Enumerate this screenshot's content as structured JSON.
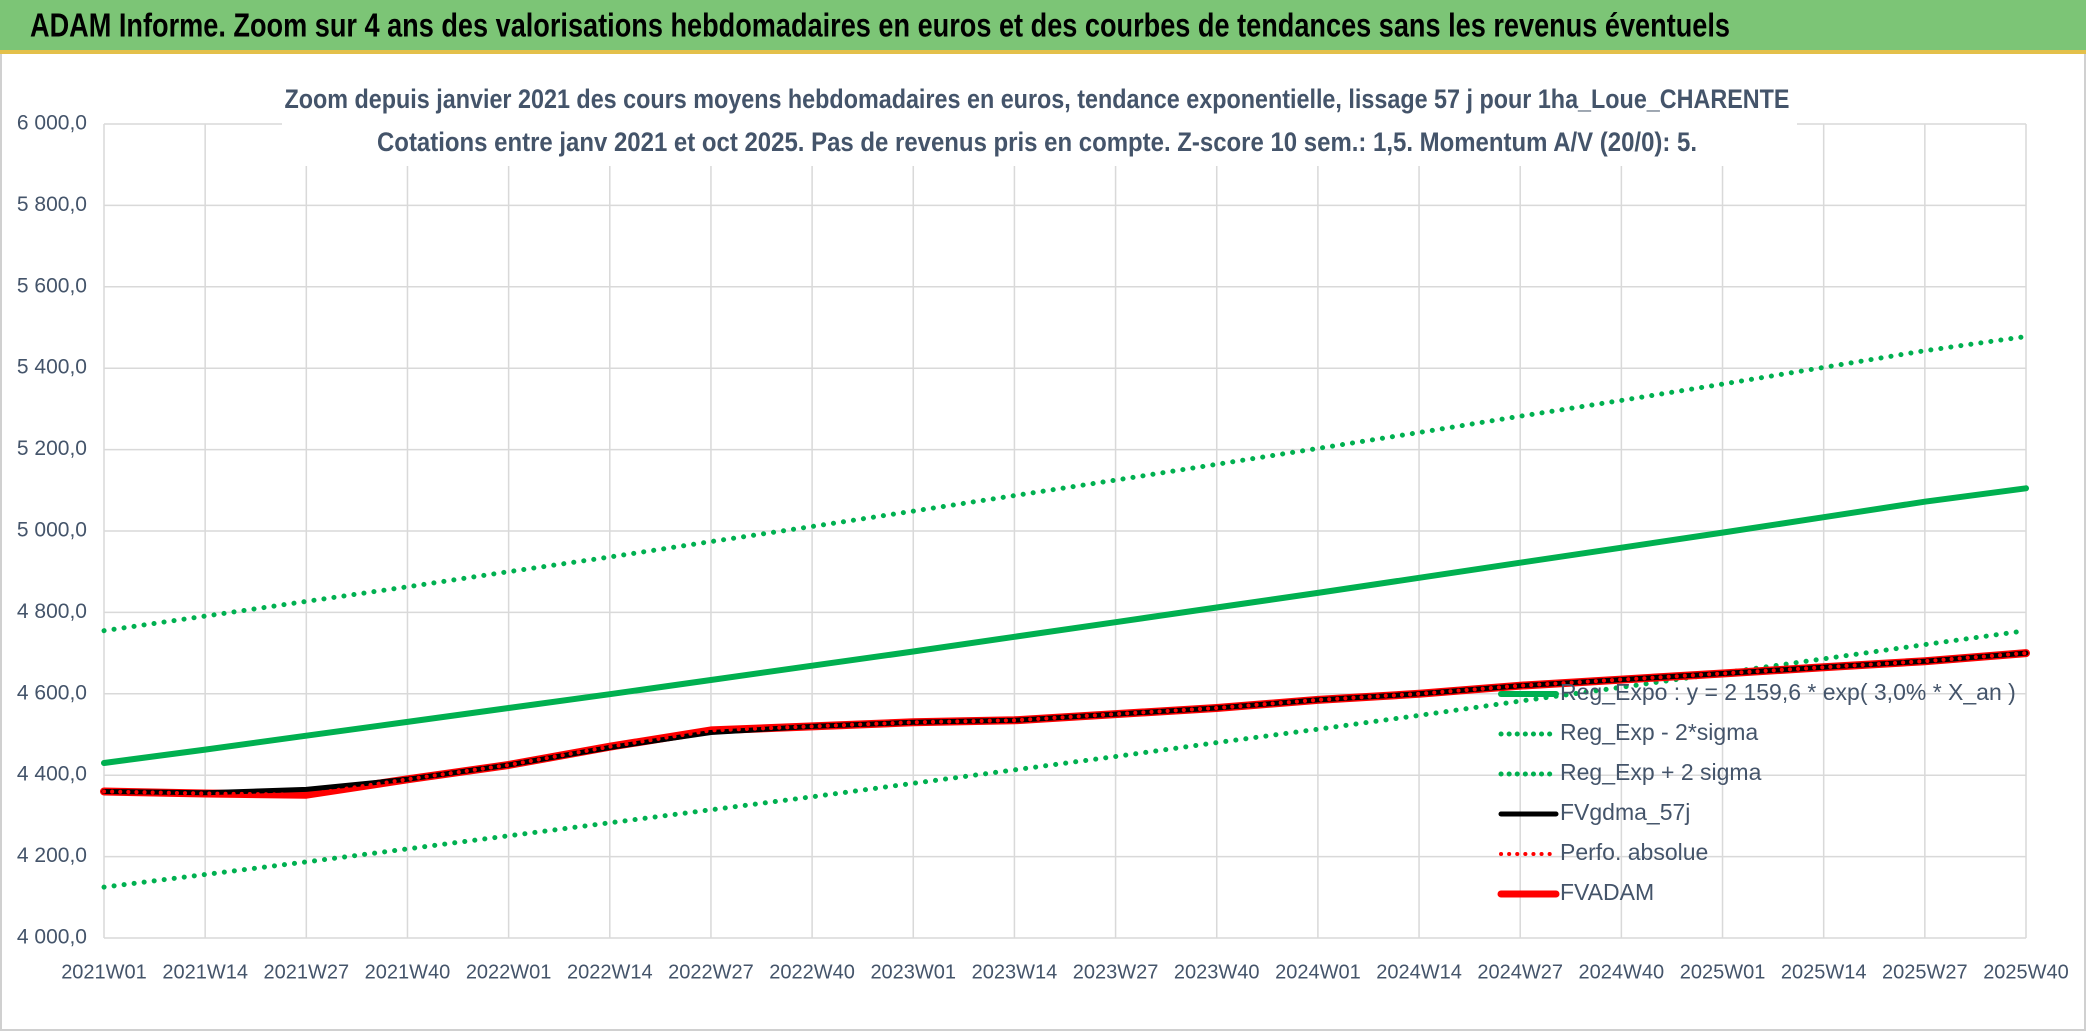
{
  "header": {
    "title": "ADAM Informe. Zoom sur 4 ans des valorisations hebdomadaires en euros et des courbes de tendances sans les revenus éventuels"
  },
  "chart_data": {
    "type": "line",
    "title": "Zoom depuis janvier 2021 des cours moyens hebdomadaires en euros, tendance exponentielle, lissage 57 j pour 1ha_Loue_CHARENTE",
    "subtitle": "Cotations entre janv 2021 et oct 2025. Pas de revenus pris en compte. Z-score 10 sem.: 1,5. Momentum A/V (20/0): 5.",
    "categories": [
      "2021W01",
      "2021W14",
      "2021W27",
      "2021W40",
      "2022W01",
      "2022W14",
      "2022W27",
      "2022W40",
      "2023W01",
      "2023W14",
      "2023W27",
      "2023W40",
      "2024W01",
      "2024W14",
      "2024W27",
      "2024W40",
      "2025W01",
      "2025W14",
      "2025W27",
      "2025W40"
    ],
    "ylim": [
      4000,
      6000
    ],
    "yticks": [
      {
        "value": 4000,
        "label": "4 000,0"
      },
      {
        "value": 4200,
        "label": "4 200,0"
      },
      {
        "value": 4400,
        "label": "4 400,0"
      },
      {
        "value": 4600,
        "label": "4 600,0"
      },
      {
        "value": 4800,
        "label": "4 800,0"
      },
      {
        "value": 5000,
        "label": "5 000,0"
      },
      {
        "value": 5200,
        "label": "5 200,0"
      },
      {
        "value": 5400,
        "label": "5 400,0"
      },
      {
        "value": 5600,
        "label": "5 600,0"
      },
      {
        "value": 5800,
        "label": "5 800,0"
      },
      {
        "value": 6000,
        "label": "6 000,0"
      }
    ],
    "grid": true,
    "series": [
      {
        "name": "Reg_Expo : y = 2 159,6 * exp( 3,0% *  X_an )",
        "color": "#00b050",
        "style": "solid",
        "width": 6,
        "values": [
          4430,
          4463,
          4497,
          4531,
          4565,
          4599,
          4634,
          4669,
          4704,
          4740,
          4776,
          4812,
          4848,
          4885,
          4922,
          4959,
          4996,
          5034,
          5072,
          5105
        ]
      },
      {
        "name": "Reg_Exp - 2*sigma",
        "color": "#00b050",
        "style": "dotted",
        "width": 5,
        "values": [
          4125,
          4156,
          4187,
          4219,
          4251,
          4283,
          4315,
          4347,
          4380,
          4413,
          4446,
          4480,
          4513,
          4547,
          4582,
          4616,
          4651,
          4686,
          4721,
          4755
        ]
      },
      {
        "name": "Reg_Exp + 2 sigma",
        "color": "#00b050",
        "style": "dotted",
        "width": 5,
        "values": [
          4755,
          4791,
          4827,
          4863,
          4900,
          4936,
          4974,
          5011,
          5049,
          5087,
          5125,
          5164,
          5203,
          5242,
          5282,
          5321,
          5361,
          5402,
          5443,
          5478
        ]
      },
      {
        "name": "FVgdma_57j",
        "color": "#000000",
        "style": "solid",
        "width": 5,
        "values": [
          4360,
          4357,
          4365,
          4390,
          4425,
          4468,
          4505,
          4520,
          4530,
          4535,
          4550,
          4565,
          4585,
          4600,
          4620,
          4635,
          4650,
          4665,
          4680,
          4700
        ]
      },
      {
        "name": "Perfo. absolue",
        "color": "#ff0000",
        "style": "dotted",
        "width": 4,
        "values": [
          4360,
          4355,
          4352,
          4390,
          4425,
          4470,
          4510,
          4520,
          4530,
          4535,
          4550,
          4565,
          4585,
          4600,
          4620,
          4635,
          4650,
          4665,
          4680,
          4700
        ]
      },
      {
        "name": "FVADAM",
        "color": "#ff0000",
        "style": "solid",
        "width": 8,
        "values": [
          4360,
          4355,
          4352,
          4390,
          4425,
          4470,
          4510,
          4520,
          4530,
          4535,
          4550,
          4565,
          4585,
          4600,
          4620,
          4635,
          4650,
          4665,
          4680,
          4700
        ]
      }
    ]
  }
}
